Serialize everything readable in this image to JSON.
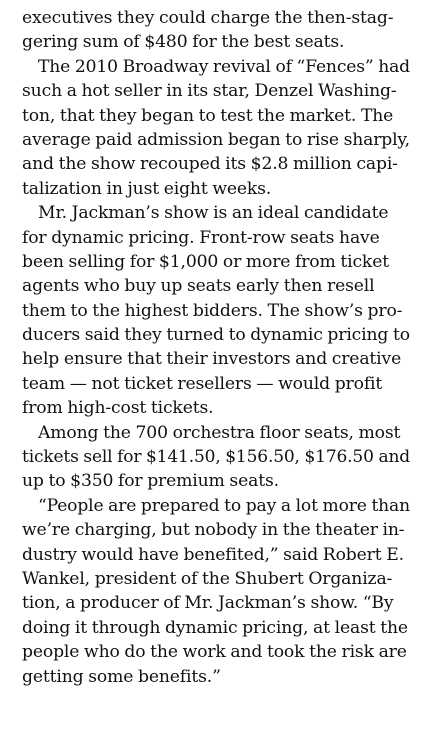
{
  "article": {
    "paragraphs": [
      {
        "lines": [
          "executives they could charge the then-stag-",
          "gering sum of $480 for the best seats."
        ]
      },
      {
        "lines": [
          "The 2010 Broadway revival of “Fences” had",
          "such a hot seller in its star, Denzel Washing-",
          "ton, that they began to test the market. The",
          "average paid admission began to rise sharply,",
          "and the show recouped its $2.8 million capi-",
          "talization in just eight weeks."
        ]
      },
      {
        "lines": [
          "Mr. Jackman’s show is an ideal candidate",
          "for dynamic pricing. Front-row seats have",
          "been selling for $1,000 or more from ticket",
          "agents who buy up seats early then resell",
          "them to the highest bidders. The show’s pro-",
          "ducers said they turned to dynamic pricing to",
          "help ensure that their investors and creative",
          "team — not ticket resellers — would profit",
          "from high-cost tickets."
        ]
      },
      {
        "lines": [
          "Among the 700 orchestra floor seats, most",
          "tickets sell for $141.50, $156.50, $176.50 and",
          "up to $350 for premium seats."
        ]
      },
      {
        "lines": [
          "“People are prepared to pay a lot more than",
          "we’re charging, but nobody in the theater in-",
          "dustry would have benefited,” said Robert E.",
          "Wankel, president of the Shubert Organiza-",
          "tion, a producer of Mr. Jackman’s show. “By",
          "doing it through dynamic pricing, at least the",
          "people who do the work and took the risk are",
          "getting some benefits.”"
        ]
      }
    ]
  }
}
